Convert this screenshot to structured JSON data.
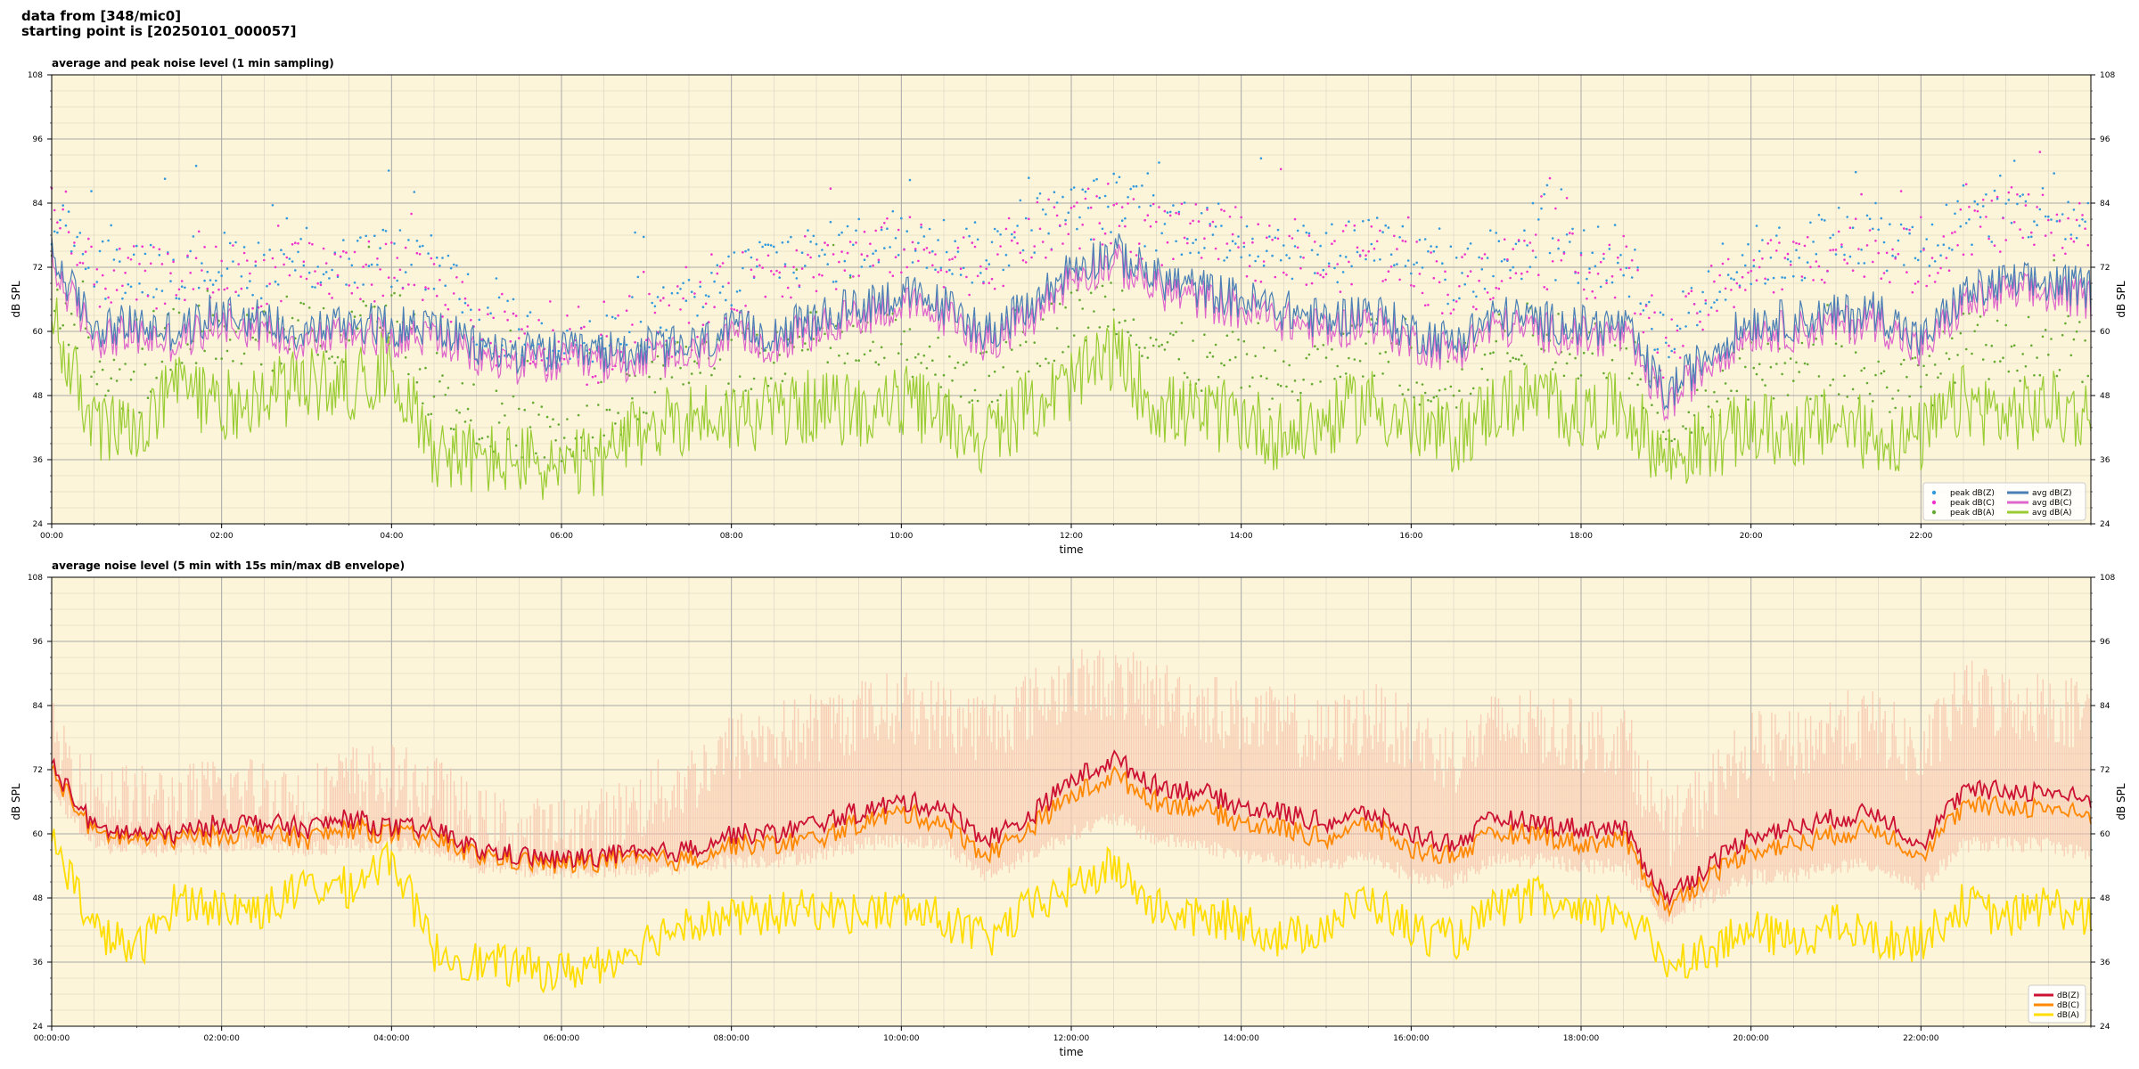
{
  "header": {
    "line1": "data from [348/mic0]",
    "line2": "starting point is [20250101_000057]"
  },
  "colors": {
    "background": "#fdf5d9",
    "peak_z": "#3399dd",
    "peak_c": "#ee33cc",
    "peak_a": "#66aa33",
    "avg_z": "#4a7fb5",
    "avg_c": "#dd66cc",
    "avg_a": "#99cc33",
    "dbz": "#cc1133",
    "dbc": "#ff8800",
    "dba": "#ffdd00",
    "envelope": "#f5c2aa"
  },
  "chart_data": [
    {
      "type": "line",
      "title": "average and peak noise level (1 min sampling)",
      "xlabel": "time",
      "ylabel": "dB SPL",
      "ylim": [
        24,
        108
      ],
      "yticks": [
        24,
        36,
        48,
        60,
        72,
        84,
        96,
        108
      ],
      "xlim": [
        0,
        24
      ],
      "xtick_labels": [
        "00:00",
        "02:00",
        "04:00",
        "06:00",
        "08:00",
        "10:00",
        "12:00",
        "14:00",
        "16:00",
        "18:00",
        "20:00",
        "22:00"
      ],
      "grid": true,
      "legend": "bottom-right",
      "legend_entries": [
        "peak dB(Z)",
        "peak dB(C)",
        "peak dB(A)",
        "avg dB(Z)",
        "avg dB(C)",
        "avg dB(A)"
      ],
      "x_hours": [
        0,
        0.5,
        1,
        1.5,
        2,
        2.5,
        3,
        3.5,
        4,
        4.5,
        5,
        5.5,
        6,
        6.5,
        7,
        7.5,
        8,
        8.5,
        9,
        9.5,
        10,
        10.5,
        11,
        11.5,
        12,
        12.5,
        13,
        13.5,
        14,
        14.5,
        15,
        15.5,
        16,
        16.5,
        17,
        17.5,
        18,
        18.5,
        19,
        19.5,
        20,
        20.5,
        21,
        21.5,
        22,
        22.5,
        23,
        23.5,
        24
      ],
      "series": [
        {
          "name": "avg dB(Z)",
          "values": [
            74,
            61,
            61,
            60,
            64,
            62,
            60,
            62,
            61,
            61,
            57,
            56,
            56,
            56,
            57,
            57,
            60,
            60,
            62,
            65,
            67,
            65,
            60,
            64,
            72,
            75,
            70,
            68,
            66,
            64,
            62,
            64,
            60,
            58,
            63,
            62,
            61,
            61,
            48,
            56,
            62,
            62,
            63,
            64,
            58,
            67,
            69,
            69,
            68
          ]
        },
        {
          "name": "avg dB(C)",
          "values": [
            72,
            59,
            59,
            58,
            62,
            60,
            58,
            60,
            59,
            59,
            55,
            54,
            54,
            54,
            55,
            55,
            58,
            58,
            60,
            63,
            65,
            63,
            58,
            62,
            70,
            73,
            68,
            66,
            64,
            62,
            60,
            62,
            58,
            56,
            61,
            60,
            59,
            59,
            46,
            54,
            60,
            60,
            61,
            62,
            56,
            65,
            67,
            67,
            66
          ]
        },
        {
          "name": "avg dB(A)",
          "values": [
            62,
            42,
            40,
            50,
            46,
            48,
            50,
            50,
            54,
            38,
            36,
            36,
            34,
            36,
            42,
            44,
            44,
            45,
            46,
            45,
            47,
            44,
            40,
            46,
            50,
            56,
            46,
            44,
            44,
            40,
            43,
            47,
            42,
            40,
            46,
            48,
            44,
            46,
            36,
            39,
            42,
            41,
            43,
            40,
            40,
            47,
            44,
            46,
            44
          ]
        },
        {
          "name": "peak dB(Z)",
          "values": [
            82,
            72,
            72,
            72,
            73,
            72,
            73,
            73,
            74,
            72,
            62,
            60,
            58,
            58,
            62,
            64,
            70,
            74,
            74,
            76,
            78,
            76,
            74,
            80,
            82,
            84,
            80,
            80,
            78,
            76,
            74,
            78,
            74,
            70,
            74,
            76,
            74,
            74,
            58,
            68,
            74,
            74,
            78,
            78,
            74,
            82,
            82,
            82,
            80
          ]
        },
        {
          "name": "peak dB(C)",
          "values": [
            80,
            70,
            70,
            70,
            71,
            70,
            71,
            71,
            72,
            70,
            60,
            58,
            56,
            56,
            60,
            62,
            68,
            72,
            72,
            74,
            76,
            74,
            72,
            78,
            80,
            82,
            78,
            78,
            76,
            74,
            72,
            76,
            72,
            68,
            72,
            74,
            72,
            72,
            56,
            66,
            72,
            72,
            76,
            76,
            72,
            80,
            80,
            80,
            78
          ]
        },
        {
          "name": "peak dB(A)",
          "values": [
            70,
            52,
            50,
            60,
            58,
            58,
            60,
            60,
            64,
            48,
            44,
            42,
            40,
            42,
            50,
            54,
            54,
            56,
            58,
            56,
            58,
            54,
            50,
            58,
            62,
            66,
            58,
            54,
            54,
            50,
            54,
            58,
            52,
            50,
            58,
            60,
            56,
            58,
            44,
            48,
            52,
            52,
            54,
            50,
            50,
            58,
            56,
            58,
            56
          ]
        }
      ]
    },
    {
      "type": "line",
      "title": "average noise level (5 min with 15s min/max dB envelope)",
      "xlabel": "time",
      "ylabel": "dB SPL",
      "ylim": [
        24,
        108
      ],
      "yticks": [
        24,
        36,
        48,
        60,
        72,
        84,
        96,
        108
      ],
      "xlim": [
        0,
        24
      ],
      "xtick_labels": [
        "00:00:00",
        "02:00:00",
        "04:00:00",
        "06:00:00",
        "08:00:00",
        "10:00:00",
        "12:00:00",
        "14:00:00",
        "16:00:00",
        "18:00:00",
        "20:00:00",
        "22:00:00"
      ],
      "grid": true,
      "legend": "bottom-right",
      "legend_entries": [
        "dB(Z)",
        "dB(C)",
        "dB(A)"
      ],
      "x_hours": [
        0,
        0.5,
        1,
        1.5,
        2,
        2.5,
        3,
        3.5,
        4,
        4.5,
        5,
        5.5,
        6,
        6.5,
        7,
        7.5,
        8,
        8.5,
        9,
        9.5,
        10,
        10.5,
        11,
        11.5,
        12,
        12.5,
        13,
        13.5,
        14,
        14.5,
        15,
        15.5,
        16,
        16.5,
        17,
        17.5,
        18,
        18.5,
        19,
        19.5,
        20,
        20.5,
        21,
        21.5,
        22,
        22.5,
        23,
        23.5,
        24
      ],
      "series": [
        {
          "name": "dB(Z)",
          "values": [
            73,
            61,
            60,
            60,
            62,
            62,
            61,
            63,
            61,
            61,
            57,
            56,
            55,
            56,
            56,
            57,
            60,
            60,
            62,
            64,
            66,
            65,
            59,
            63,
            70,
            74,
            69,
            68,
            65,
            64,
            62,
            64,
            60,
            58,
            63,
            62,
            61,
            61,
            48,
            54,
            60,
            61,
            63,
            64,
            58,
            68,
            68,
            68,
            66
          ]
        },
        {
          "name": "dB(C)",
          "values": [
            72,
            60,
            59,
            59,
            60,
            60,
            59,
            61,
            60,
            59,
            56,
            55,
            54,
            55,
            55,
            55,
            58,
            58,
            59,
            62,
            64,
            62,
            56,
            61,
            67,
            71,
            66,
            65,
            62,
            61,
            59,
            62,
            57,
            56,
            60,
            60,
            58,
            59,
            46,
            52,
            57,
            58,
            60,
            61,
            56,
            65,
            65,
            65,
            63
          ]
        },
        {
          "name": "dB(A)",
          "values": [
            60,
            42,
            38,
            48,
            46,
            46,
            50,
            50,
            56,
            38,
            36,
            35,
            34,
            36,
            40,
            44,
            44,
            45,
            46,
            45,
            46,
            44,
            40,
            46,
            50,
            54,
            46,
            44,
            44,
            40,
            43,
            48,
            42,
            40,
            46,
            48,
            44,
            46,
            36,
            38,
            42,
            40,
            43,
            40,
            40,
            47,
            44,
            47,
            44
          ]
        },
        {
          "name": "envelope max",
          "values": [
            78,
            68,
            66,
            66,
            68,
            68,
            66,
            70,
            70,
            68,
            62,
            60,
            60,
            62,
            66,
            70,
            76,
            78,
            80,
            82,
            84,
            82,
            80,
            84,
            88,
            88,
            86,
            84,
            82,
            80,
            78,
            82,
            78,
            74,
            80,
            80,
            78,
            78,
            60,
            68,
            76,
            76,
            80,
            80,
            74,
            86,
            84,
            84,
            82
          ]
        },
        {
          "name": "envelope min",
          "values": [
            68,
            58,
            57,
            57,
            58,
            58,
            57,
            58,
            58,
            57,
            54,
            53,
            53,
            53,
            53,
            54,
            55,
            55,
            56,
            58,
            59,
            58,
            52,
            56,
            60,
            63,
            59,
            58,
            56,
            55,
            54,
            56,
            52,
            51,
            55,
            55,
            54,
            54,
            44,
            48,
            52,
            52,
            54,
            54,
            50,
            58,
            58,
            58,
            56
          ]
        }
      ]
    }
  ]
}
